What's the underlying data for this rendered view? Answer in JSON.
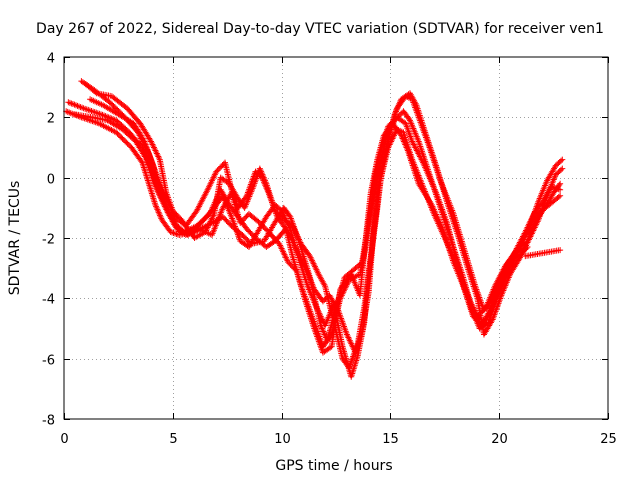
{
  "chart_data": {
    "type": "scatter",
    "title": "Day 267 of 2022, Sidereal Day-to-day VTEC variation (SDTVAR) for receiver ven1",
    "xlabel": "GPS time / hours",
    "ylabel": "SDTVAR / TECUs",
    "xlim": [
      0,
      25
    ],
    "ylim": [
      -8,
      4
    ],
    "xticks": [
      0,
      5,
      10,
      15,
      20,
      25
    ],
    "yticks": [
      -8,
      -6,
      -4,
      -2,
      0,
      2,
      4
    ],
    "grid": true,
    "grid_style": "dotted",
    "marker": "+",
    "color": "#ff0000",
    "series": [
      {
        "points": [
          [
            0.1,
            2.2
          ],
          [
            0.8,
            2.0
          ],
          [
            1.6,
            1.8
          ],
          [
            2.4,
            1.5
          ],
          [
            3.1,
            1.0
          ],
          [
            3.6,
            0.5
          ],
          [
            3.9,
            -0.2
          ],
          [
            4.2,
            -0.9
          ],
          [
            4.5,
            -1.4
          ],
          [
            4.9,
            -1.8
          ],
          [
            5.3,
            -1.9
          ],
          [
            6.0,
            -1.8
          ],
          [
            6.8,
            -1.5
          ],
          [
            7.3,
            -1.3
          ],
          [
            7.7,
            -1.6
          ],
          [
            8.2,
            -1.9
          ],
          [
            8.6,
            -2.2
          ],
          [
            9.2,
            -2.1
          ],
          [
            9.6,
            -1.6
          ],
          [
            10.1,
            -1.0
          ],
          [
            10.4,
            -1.3
          ],
          [
            10.8,
            -2.1
          ],
          [
            11.3,
            -3.3
          ],
          [
            11.8,
            -4.9
          ],
          [
            12.1,
            -5.4
          ],
          [
            12.5,
            -4.3
          ],
          [
            12.9,
            -3.3
          ],
          [
            13.4,
            -3.0
          ],
          [
            13.7,
            -2.8
          ],
          [
            14.1,
            -1.0
          ],
          [
            14.3,
            0.1
          ],
          [
            14.6,
            1.0
          ],
          [
            14.9,
            1.7
          ],
          [
            15.3,
            2.0
          ],
          [
            15.7,
            1.8
          ],
          [
            16.0,
            1.2
          ],
          [
            16.5,
            0.5
          ],
          [
            17.1,
            -0.5
          ],
          [
            17.6,
            -1.5
          ],
          [
            18.0,
            -2.6
          ],
          [
            18.4,
            -3.7
          ],
          [
            18.8,
            -4.6
          ],
          [
            19.2,
            -4.9
          ],
          [
            19.5,
            -4.5
          ],
          [
            19.9,
            -3.8
          ],
          [
            20.3,
            -3.1
          ],
          [
            20.7,
            -2.5
          ],
          [
            21.2,
            -1.8
          ],
          [
            21.6,
            -1.2
          ],
          [
            22.0,
            -0.8
          ],
          [
            22.4,
            -0.3
          ],
          [
            22.8,
            -0.4
          ]
        ]
      },
      {
        "points": [
          [
            0.2,
            2.5
          ],
          [
            0.9,
            2.3
          ],
          [
            1.7,
            2.1
          ],
          [
            2.4,
            1.9
          ],
          [
            3.0,
            1.5
          ],
          [
            3.6,
            1.0
          ],
          [
            4.0,
            0.3
          ],
          [
            4.3,
            -0.4
          ],
          [
            4.7,
            -1.0
          ],
          [
            5.1,
            -1.6
          ],
          [
            5.5,
            -1.8
          ],
          [
            6.1,
            -1.6
          ],
          [
            6.7,
            -1.2
          ],
          [
            7.2,
            -0.4
          ],
          [
            7.6,
            -0.9
          ],
          [
            8.0,
            -1.3
          ],
          [
            8.4,
            -1.7
          ],
          [
            8.8,
            -2.0
          ],
          [
            9.3,
            -2.3
          ],
          [
            9.7,
            -2.1
          ],
          [
            10.2,
            -1.7
          ],
          [
            10.5,
            -2.6
          ],
          [
            10.9,
            -3.6
          ],
          [
            11.4,
            -4.6
          ],
          [
            11.9,
            -5.6
          ],
          [
            12.3,
            -5.2
          ],
          [
            12.7,
            -4.0
          ],
          [
            13.1,
            -3.4
          ],
          [
            13.6,
            -3.2
          ],
          [
            13.9,
            -2.2
          ],
          [
            14.2,
            -0.8
          ],
          [
            14.5,
            0.4
          ],
          [
            14.8,
            1.3
          ],
          [
            15.2,
            1.9
          ],
          [
            15.6,
            2.2
          ],
          [
            15.9,
            1.9
          ],
          [
            16.3,
            1.2
          ],
          [
            16.8,
            0.1
          ],
          [
            17.3,
            -1.0
          ],
          [
            17.8,
            -2.1
          ],
          [
            18.3,
            -3.2
          ],
          [
            18.7,
            -4.2
          ],
          [
            19.1,
            -4.8
          ],
          [
            19.4,
            -4.7
          ],
          [
            19.8,
            -4.1
          ],
          [
            20.2,
            -3.4
          ],
          [
            20.6,
            -2.8
          ],
          [
            21.1,
            -2.1
          ],
          [
            21.5,
            -1.5
          ],
          [
            21.9,
            -1.1
          ],
          [
            22.3,
            -0.9
          ],
          [
            22.8,
            -0.6
          ]
        ]
      },
      {
        "points": [
          [
            0.8,
            3.2
          ],
          [
            1.4,
            2.9
          ],
          [
            2.1,
            2.5
          ],
          [
            2.8,
            2.0
          ],
          [
            3.4,
            1.5
          ],
          [
            3.9,
            0.8
          ],
          [
            4.3,
            0.0
          ],
          [
            4.7,
            -0.7
          ],
          [
            5.1,
            -1.3
          ],
          [
            5.6,
            -1.6
          ],
          [
            6.1,
            -1.1
          ],
          [
            6.6,
            -0.4
          ],
          [
            7.0,
            0.2
          ],
          [
            7.4,
            0.5
          ],
          [
            7.7,
            -0.4
          ],
          [
            8.0,
            -1.0
          ],
          [
            8.4,
            -0.6
          ],
          [
            8.8,
            0.2
          ],
          [
            9.1,
            0.0
          ],
          [
            9.4,
            -0.5
          ],
          [
            9.8,
            -1.3
          ],
          [
            10.3,
            -1.8
          ],
          [
            10.7,
            -2.4
          ],
          [
            11.1,
            -3.0
          ],
          [
            11.5,
            -3.7
          ],
          [
            11.9,
            -4.1
          ],
          [
            12.2,
            -3.9
          ],
          [
            12.6,
            -4.4
          ],
          [
            13.0,
            -5.2
          ],
          [
            13.4,
            -5.8
          ],
          [
            13.7,
            -5.1
          ],
          [
            14.0,
            -3.8
          ],
          [
            14.2,
            -2.0
          ],
          [
            14.4,
            -0.6
          ],
          [
            14.7,
            0.6
          ],
          [
            15.0,
            1.6
          ],
          [
            15.3,
            2.3
          ],
          [
            15.7,
            2.7
          ],
          [
            16.0,
            2.6
          ],
          [
            16.3,
            2.0
          ],
          [
            16.8,
            1.0
          ],
          [
            17.3,
            -0.1
          ],
          [
            17.9,
            -1.2
          ],
          [
            18.4,
            -2.4
          ],
          [
            18.9,
            -3.6
          ],
          [
            19.3,
            -4.4
          ],
          [
            19.6,
            -4.1
          ],
          [
            20.0,
            -3.4
          ],
          [
            20.4,
            -2.8
          ],
          [
            20.9,
            -2.3
          ],
          [
            21.4,
            -1.6
          ],
          [
            21.8,
            -0.8
          ],
          [
            22.2,
            -0.1
          ],
          [
            22.6,
            0.4
          ],
          [
            22.9,
            0.6
          ]
        ]
      },
      {
        "points": [
          [
            1.2,
            2.6
          ],
          [
            1.8,
            2.4
          ],
          [
            2.5,
            2.1
          ],
          [
            3.2,
            1.8
          ],
          [
            3.7,
            1.2
          ],
          [
            4.1,
            0.4
          ],
          [
            4.4,
            -0.4
          ],
          [
            4.8,
            -1.1
          ],
          [
            5.2,
            -1.6
          ],
          [
            5.7,
            -1.9
          ],
          [
            6.3,
            -1.5
          ],
          [
            6.9,
            -1.0
          ],
          [
            7.3,
            -0.6
          ],
          [
            7.7,
            -1.3
          ],
          [
            8.1,
            -2.1
          ],
          [
            8.5,
            -2.3
          ],
          [
            8.9,
            -1.8
          ],
          [
            9.3,
            -1.3
          ],
          [
            9.7,
            -0.9
          ],
          [
            10.0,
            -1.1
          ],
          [
            10.4,
            -1.7
          ],
          [
            10.8,
            -2.7
          ],
          [
            11.2,
            -3.6
          ],
          [
            11.6,
            -4.3
          ],
          [
            12.0,
            -4.9
          ],
          [
            12.4,
            -4.2
          ],
          [
            12.8,
            -5.6
          ],
          [
            13.2,
            -6.6
          ],
          [
            13.5,
            -5.9
          ],
          [
            13.8,
            -4.8
          ],
          [
            14.0,
            -3.2
          ],
          [
            14.3,
            -1.5
          ],
          [
            14.5,
            -0.2
          ],
          [
            14.9,
            1.0
          ],
          [
            15.3,
            1.6
          ],
          [
            15.6,
            1.5
          ],
          [
            16.0,
            0.6
          ],
          [
            16.5,
            -0.3
          ],
          [
            17.0,
            -1.2
          ],
          [
            17.5,
            -2.0
          ],
          [
            18.1,
            -3.0
          ],
          [
            18.6,
            -4.0
          ],
          [
            19.0,
            -4.6
          ],
          [
            19.4,
            -4.3
          ],
          [
            19.8,
            -3.6
          ],
          [
            20.3,
            -2.9
          ],
          [
            20.8,
            -2.5
          ],
          [
            21.3,
            -2.1
          ],
          [
            21.7,
            -1.4
          ],
          [
            22.1,
            -1.0
          ],
          [
            22.5,
            -0.5
          ],
          [
            22.8,
            -0.2
          ]
        ]
      },
      {
        "points": [
          [
            0.5,
            2.1
          ],
          [
            1.3,
            2.0
          ],
          [
            2.0,
            1.9
          ],
          [
            2.7,
            1.6
          ],
          [
            3.3,
            1.2
          ],
          [
            3.8,
            0.6
          ],
          [
            4.1,
            -0.1
          ],
          [
            4.4,
            -0.6
          ],
          [
            4.8,
            -1.2
          ],
          [
            5.2,
            -1.7
          ],
          [
            5.6,
            -1.9
          ],
          [
            6.2,
            -1.7
          ],
          [
            6.8,
            -1.9
          ],
          [
            7.3,
            -1.0
          ],
          [
            7.7,
            -0.5
          ],
          [
            8.1,
            -1.5
          ],
          [
            8.5,
            -1.2
          ],
          [
            9.0,
            -1.5
          ],
          [
            9.4,
            -1.8
          ],
          [
            9.9,
            -2.2
          ],
          [
            10.3,
            -2.8
          ],
          [
            10.7,
            -3.1
          ],
          [
            11.1,
            -4.1
          ],
          [
            11.5,
            -5.0
          ],
          [
            11.9,
            -5.8
          ],
          [
            12.3,
            -5.6
          ],
          [
            12.7,
            -3.7
          ],
          [
            13.2,
            -3.2
          ],
          [
            13.6,
            -3.9
          ],
          [
            13.9,
            -1.8
          ],
          [
            14.1,
            -0.5
          ],
          [
            14.4,
            0.6
          ],
          [
            14.7,
            1.4
          ],
          [
            15.1,
            1.8
          ],
          [
            15.5,
            1.4
          ],
          [
            15.8,
            0.9
          ],
          [
            16.3,
            -0.2
          ],
          [
            16.9,
            -0.9
          ],
          [
            17.4,
            -1.7
          ],
          [
            17.9,
            -2.8
          ],
          [
            18.3,
            -3.5
          ],
          [
            18.7,
            -4.3
          ],
          [
            19.1,
            -5.0
          ],
          [
            19.5,
            -4.8
          ],
          [
            19.9,
            -4.0
          ],
          [
            20.3,
            -3.3
          ],
          [
            20.8,
            -2.7
          ],
          [
            21.3,
            -2.3
          ]
        ]
      },
      {
        "points": [
          [
            1.0,
            3.1
          ],
          [
            1.5,
            2.8
          ],
          [
            2.2,
            2.7
          ],
          [
            2.9,
            2.3
          ],
          [
            3.5,
            1.8
          ],
          [
            4.0,
            1.2
          ],
          [
            4.4,
            0.6
          ],
          [
            4.7,
            -0.5
          ],
          [
            5.0,
            -1.1
          ],
          [
            5.4,
            -1.4
          ],
          [
            6.0,
            -2.0
          ],
          [
            6.5,
            -1.8
          ],
          [
            6.9,
            -1.2
          ],
          [
            7.2,
            0.0
          ],
          [
            7.6,
            -0.2
          ],
          [
            8.0,
            -0.7
          ],
          [
            8.3,
            -1.0
          ],
          [
            8.7,
            -0.3
          ],
          [
            9.0,
            0.3
          ],
          [
            9.3,
            -0.2
          ],
          [
            9.7,
            -1.1
          ],
          [
            10.1,
            -1.4
          ],
          [
            10.5,
            -1.6
          ],
          [
            10.9,
            -2.2
          ],
          [
            11.3,
            -2.6
          ],
          [
            11.7,
            -3.2
          ],
          [
            12.0,
            -3.6
          ],
          [
            12.4,
            -4.8
          ],
          [
            12.8,
            -6.0
          ],
          [
            13.1,
            -6.3
          ],
          [
            13.5,
            -5.5
          ],
          [
            13.8,
            -4.3
          ],
          [
            14.1,
            -2.6
          ],
          [
            14.4,
            -1.0
          ],
          [
            14.6,
            0.2
          ],
          [
            14.9,
            1.2
          ],
          [
            15.2,
            2.1
          ],
          [
            15.5,
            2.6
          ],
          [
            15.9,
            2.8
          ],
          [
            16.2,
            2.4
          ],
          [
            16.6,
            1.5
          ],
          [
            17.1,
            0.4
          ],
          [
            17.6,
            -0.8
          ],
          [
            18.1,
            -1.9
          ],
          [
            18.6,
            -3.1
          ],
          [
            19.0,
            -4.0
          ],
          [
            19.3,
            -5.2
          ],
          [
            19.7,
            -4.7
          ],
          [
            20.1,
            -3.9
          ],
          [
            20.5,
            -3.2
          ],
          [
            21.0,
            -2.6
          ],
          [
            21.4,
            -2.0
          ],
          [
            21.8,
            -1.4
          ],
          [
            22.2,
            -0.6
          ],
          [
            22.6,
            0.1
          ],
          [
            22.9,
            0.3
          ]
        ]
      },
      {
        "points": [
          [
            21.2,
            -2.6
          ],
          [
            22.8,
            -2.4
          ]
        ]
      }
    ]
  }
}
